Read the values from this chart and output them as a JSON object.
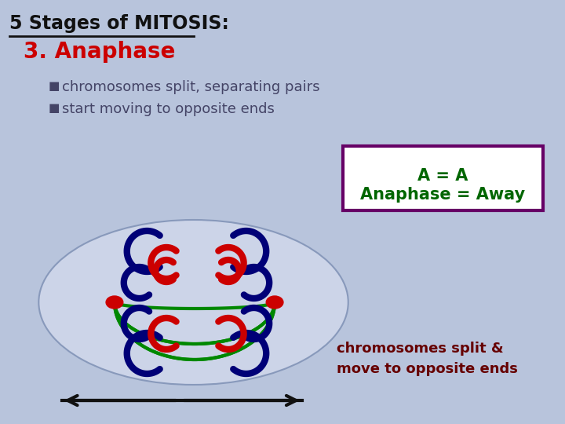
{
  "bg_color": "#b8c4dc",
  "title_text": "5 Stages of MITOSIS:",
  "subtitle_text": "3. Anaphase",
  "bullet1": "chromosomes split, separating pairs",
  "bullet2": "start moving to opposite ends",
  "box_line1": "A = A",
  "box_line2": "Anaphase = Away",
  "caption_text": "chromosomes split &\nmove to opposite ends",
  "title_color": "#111111",
  "subtitle_color": "#cc0000",
  "bullet_color": "#444466",
  "box_bg": "#ffffff",
  "box_border": "#660066",
  "box_text_color": "#006600",
  "caption_color": "#660000",
  "cell_fill": "#ccd4e8",
  "cell_edge": "#8899bb",
  "green_color": "#008800",
  "red_color": "#cc0000",
  "blue_color": "#000077",
  "centromere_color": "#cc0000",
  "arrow_color": "#111111"
}
